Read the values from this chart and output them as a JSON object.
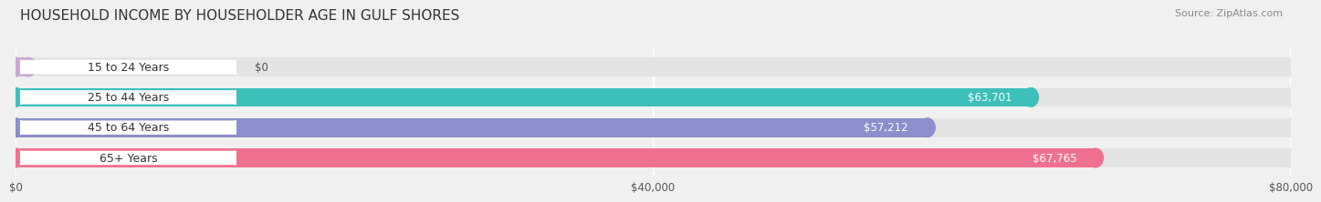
{
  "title": "HOUSEHOLD INCOME BY HOUSEHOLDER AGE IN GULF SHORES",
  "source": "Source: ZipAtlas.com",
  "categories": [
    "15 to 24 Years",
    "25 to 44 Years",
    "45 to 64 Years",
    "65+ Years"
  ],
  "values": [
    0,
    63701,
    57212,
    67765
  ],
  "bar_colors": [
    "#c9a8d4",
    "#3dbfba",
    "#8b8fcc",
    "#f07090"
  ],
  "bar_height": 0.62,
  "xlim": [
    0,
    80000
  ],
  "xticks": [
    0,
    40000,
    80000
  ],
  "xtick_labels": [
    "$0",
    "$40,000",
    "$80,000"
  ],
  "background_color": "#f0f0f0",
  "bar_bg_color": "#e4e4e4",
  "value_labels": [
    "$0",
    "$63,701",
    "$57,212",
    "$67,765"
  ],
  "title_fontsize": 11,
  "source_fontsize": 8,
  "label_fontsize": 9,
  "value_fontsize": 8.5,
  "tick_fontsize": 8.5
}
